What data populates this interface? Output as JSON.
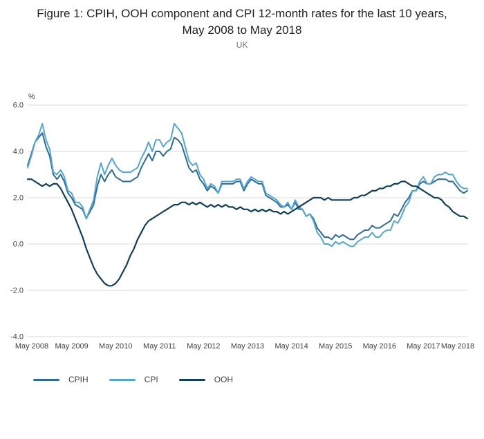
{
  "title": "Figure 1: CPIH, OOH component and CPI 12-month rates for the last 10 years, May 2008 to May 2018",
  "subtitle": "UK",
  "colors": {
    "grid": "#d9d9d9",
    "axis_text": "#414042",
    "cpih": "#2b6a99",
    "cpi": "#4fa7d4",
    "ooh": "#0e3e5c"
  },
  "chart_data": {
    "type": "line",
    "unit_label": "%",
    "ylim": [
      -4.0,
      6.0
    ],
    "y_ticks": [
      "6.0",
      "4.0",
      "2.0",
      "0.0",
      "-2.0",
      "-4.0"
    ],
    "x_tick_labels": [
      "May 2008",
      "May 2009",
      "May 2010",
      "May 2011",
      "May 2012",
      "May 2013",
      "May 2014",
      "May 2015",
      "May 2016",
      "May 2017",
      "May 2018"
    ],
    "frequency": "monthly",
    "grid": "horizontal",
    "legend_position": "bottom",
    "series": [
      {
        "name": "CPIH",
        "color": "#2b6a99",
        "values": [
          3.4,
          3.9,
          4.4,
          4.6,
          4.8,
          4.2,
          3.8,
          3.0,
          2.8,
          3.0,
          2.7,
          2.2,
          2.0,
          1.7,
          1.6,
          1.5,
          1.1,
          1.4,
          1.7,
          2.5,
          3.0,
          2.7,
          3.0,
          3.2,
          2.9,
          2.8,
          2.7,
          2.7,
          2.7,
          2.8,
          2.9,
          3.3,
          3.6,
          3.9,
          3.6,
          4.0,
          4.0,
          3.8,
          4.0,
          4.1,
          4.6,
          4.5,
          4.3,
          3.8,
          3.3,
          3.1,
          3.2,
          2.8,
          2.6,
          2.3,
          2.5,
          2.4,
          2.2,
          2.6,
          2.6,
          2.6,
          2.6,
          2.7,
          2.7,
          2.3,
          2.6,
          2.8,
          2.7,
          2.6,
          2.6,
          2.1,
          2.0,
          1.9,
          1.8,
          1.6,
          1.6,
          1.7,
          1.5,
          1.8,
          1.5,
          1.5,
          1.2,
          1.3,
          1.1,
          0.7,
          0.5,
          0.3,
          0.3,
          0.2,
          0.4,
          0.3,
          0.4,
          0.3,
          0.2,
          0.2,
          0.4,
          0.5,
          0.6,
          0.6,
          0.8,
          0.7,
          0.7,
          0.8,
          0.9,
          1.0,
          1.3,
          1.2,
          1.5,
          1.8,
          2.0,
          2.3,
          2.3,
          2.6,
          2.7,
          2.6,
          2.6,
          2.7,
          2.8,
          2.8,
          2.8,
          2.7,
          2.7,
          2.5,
          2.3,
          2.2,
          2.3
        ]
      },
      {
        "name": "CPI",
        "color": "#4fa7d4",
        "values": [
          3.3,
          3.8,
          4.4,
          4.7,
          5.2,
          4.5,
          4.1,
          3.1,
          3.0,
          3.2,
          2.9,
          2.3,
          2.2,
          1.8,
          1.8,
          1.6,
          1.1,
          1.5,
          1.9,
          2.9,
          3.5,
          3.0,
          3.4,
          3.7,
          3.4,
          3.2,
          3.1,
          3.1,
          3.1,
          3.2,
          3.3,
          3.7,
          4.0,
          4.4,
          4.0,
          4.5,
          4.5,
          4.2,
          4.4,
          4.5,
          5.2,
          5.0,
          4.8,
          4.2,
          3.6,
          3.4,
          3.5,
          3.0,
          2.8,
          2.4,
          2.6,
          2.5,
          2.2,
          2.7,
          2.7,
          2.7,
          2.7,
          2.8,
          2.8,
          2.4,
          2.7,
          2.9,
          2.8,
          2.7,
          2.7,
          2.2,
          2.1,
          2.0,
          1.9,
          1.7,
          1.6,
          1.8,
          1.5,
          1.9,
          1.6,
          1.5,
          1.2,
          1.3,
          1.0,
          0.5,
          0.3,
          0.0,
          0.0,
          -0.1,
          0.1,
          0.0,
          0.1,
          0.0,
          -0.1,
          -0.1,
          0.1,
          0.2,
          0.3,
          0.3,
          0.5,
          0.3,
          0.3,
          0.5,
          0.6,
          0.6,
          1.0,
          0.9,
          1.2,
          1.6,
          1.8,
          2.3,
          2.3,
          2.7,
          2.9,
          2.6,
          2.6,
          2.9,
          3.0,
          3.0,
          3.1,
          3.0,
          3.0,
          2.7,
          2.5,
          2.4,
          2.4
        ]
      },
      {
        "name": "OOH",
        "color": "#0e3e5c",
        "values": [
          2.8,
          2.8,
          2.7,
          2.6,
          2.5,
          2.6,
          2.5,
          2.6,
          2.6,
          2.4,
          2.1,
          1.8,
          1.5,
          1.1,
          0.7,
          0.3,
          -0.2,
          -0.6,
          -1.0,
          -1.3,
          -1.5,
          -1.7,
          -1.8,
          -1.8,
          -1.7,
          -1.5,
          -1.2,
          -0.9,
          -0.5,
          -0.2,
          0.2,
          0.5,
          0.8,
          1.0,
          1.1,
          1.2,
          1.3,
          1.4,
          1.5,
          1.6,
          1.7,
          1.7,
          1.8,
          1.8,
          1.7,
          1.8,
          1.7,
          1.8,
          1.7,
          1.6,
          1.7,
          1.6,
          1.7,
          1.6,
          1.7,
          1.6,
          1.6,
          1.5,
          1.6,
          1.5,
          1.5,
          1.4,
          1.5,
          1.4,
          1.5,
          1.4,
          1.5,
          1.4,
          1.4,
          1.3,
          1.4,
          1.3,
          1.4,
          1.5,
          1.6,
          1.7,
          1.8,
          1.9,
          2.0,
          2.0,
          2.0,
          1.9,
          2.0,
          1.9,
          1.9,
          1.9,
          1.9,
          1.9,
          1.9,
          2.0,
          2.0,
          2.1,
          2.1,
          2.2,
          2.3,
          2.3,
          2.4,
          2.4,
          2.5,
          2.5,
          2.6,
          2.6,
          2.7,
          2.7,
          2.6,
          2.5,
          2.5,
          2.4,
          2.3,
          2.2,
          2.1,
          2.0,
          2.0,
          1.9,
          1.7,
          1.6,
          1.4,
          1.3,
          1.2,
          1.2,
          1.1
        ]
      }
    ]
  }
}
